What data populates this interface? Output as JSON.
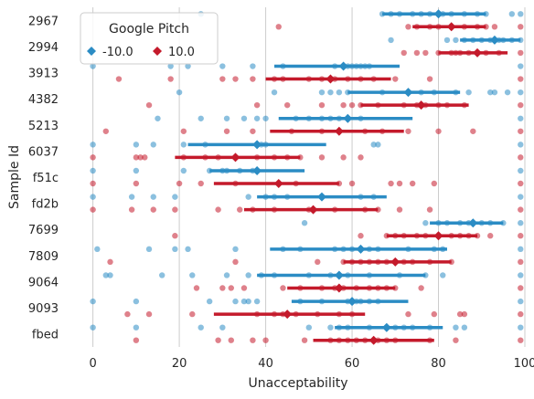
{
  "chart_data": {
    "type": "scatter",
    "xlabel": "Unacceptability",
    "ylabel": "Sample Id",
    "xlim": [
      -5,
      100
    ],
    "x_ticks": [
      0,
      20,
      40,
      60,
      80,
      100
    ],
    "grid": "vertical",
    "legend": {
      "title": "Google Pitch",
      "placement": "top-left"
    },
    "categories": [
      "2967",
      "2994",
      "3913",
      "4382",
      "5213",
      "6037",
      "f51c",
      "fd2b",
      "7699",
      "7809",
      "9064",
      "9093",
      "fbed"
    ],
    "series": [
      {
        "name": "-10.0",
        "color": "#2b8cc4",
        "means": [
          80,
          93,
          58,
          73,
          59,
          38,
          38,
          53,
          88,
          62,
          57,
          60,
          68
        ],
        "ci": [
          [
            67,
            91
          ],
          [
            85,
            99
          ],
          [
            42,
            71
          ],
          [
            59,
            85
          ],
          [
            43,
            74
          ],
          [
            22,
            54
          ],
          [
            27,
            49
          ],
          [
            38,
            68
          ],
          [
            78,
            95
          ],
          [
            41,
            82
          ],
          [
            38,
            77
          ],
          [
            46,
            73
          ],
          [
            56,
            81
          ]
        ],
        "points": [
          [
            25,
            67,
            69,
            71,
            74,
            76,
            78,
            81,
            83,
            86,
            89,
            91,
            97,
            99
          ],
          [
            69,
            82,
            84,
            86,
            88,
            90,
            92,
            94,
            95,
            97,
            99
          ],
          [
            0,
            18,
            22,
            30,
            37,
            44,
            56,
            58,
            59,
            60,
            61,
            62,
            63,
            64,
            99
          ],
          [
            20,
            42,
            53,
            55,
            57,
            59,
            67,
            73,
            76,
            79,
            84,
            87,
            92,
            93,
            96,
            99
          ],
          [
            15,
            25,
            31,
            35,
            38,
            40,
            47,
            50,
            53,
            55,
            57,
            62,
            99
          ],
          [
            0,
            10,
            14,
            21,
            26,
            38,
            39,
            40,
            65,
            66,
            99
          ],
          [
            0,
            10,
            21,
            27,
            30,
            31,
            34,
            37,
            99
          ],
          [
            0,
            9,
            14,
            19,
            36,
            40,
            42,
            45,
            62,
            65,
            99
          ],
          [
            49,
            77,
            80,
            82,
            85,
            87,
            90,
            92,
            95,
            99
          ],
          [
            1,
            13,
            19,
            22,
            33,
            44,
            48,
            56,
            58,
            60,
            62,
            64,
            66,
            73,
            79,
            81,
            99
          ],
          [
            3,
            4,
            16,
            23,
            31,
            36,
            39,
            42,
            50,
            55,
            59,
            64,
            71,
            77,
            81,
            99
          ],
          [
            0,
            10,
            27,
            33,
            35,
            36,
            38,
            48,
            53,
            59,
            61,
            62,
            64,
            66,
            99
          ],
          [
            0,
            10,
            25,
            30,
            50,
            55,
            57,
            59,
            64,
            68,
            70,
            72,
            74,
            78,
            84,
            86,
            99
          ]
        ]
      },
      {
        "name": "10.0",
        "color": "#c41a2b",
        "means": [
          83,
          89,
          55,
          76,
          57,
          33,
          43,
          51,
          80,
          70,
          57,
          45,
          65
        ],
        "ci": [
          [
            74,
            91
          ],
          [
            80,
            96
          ],
          [
            40,
            69
          ],
          [
            62,
            87
          ],
          [
            41,
            72
          ],
          [
            19,
            48
          ],
          [
            28,
            57
          ],
          [
            35,
            66
          ],
          [
            68,
            89
          ],
          [
            58,
            83
          ],
          [
            45,
            70
          ],
          [
            28,
            63
          ],
          [
            51,
            79
          ]
        ],
        "points": [
          [
            43,
            73,
            75,
            78,
            80,
            83,
            86,
            89,
            91,
            93,
            99
          ],
          [
            72,
            75,
            77,
            80,
            83,
            84,
            85,
            87,
            89,
            91,
            94,
            99
          ],
          [
            6,
            18,
            30,
            33,
            37,
            42,
            44,
            50,
            53,
            56,
            59,
            62,
            65,
            70,
            78,
            99
          ],
          [
            13,
            38,
            45,
            53,
            58,
            60,
            62,
            66,
            72,
            75,
            77,
            80,
            82,
            86,
            99
          ],
          [
            3,
            21,
            31,
            37,
            46,
            53,
            57,
            63,
            67,
            73,
            80,
            88,
            99
          ],
          [
            0,
            10,
            11,
            12,
            21,
            26,
            29,
            33,
            38,
            42,
            45,
            48,
            53,
            58,
            62,
            99
          ],
          [
            0,
            10,
            20,
            25,
            33,
            43,
            47,
            57,
            60,
            69,
            71,
            74,
            79,
            99
          ],
          [
            0,
            9,
            14,
            19,
            29,
            34,
            37,
            42,
            50,
            51,
            56,
            63,
            66,
            71,
            78,
            99
          ],
          [
            19,
            62,
            68,
            70,
            72,
            75,
            77,
            80,
            83,
            85,
            87,
            89,
            92,
            99
          ],
          [
            4,
            33,
            52,
            58,
            60,
            62,
            64,
            66,
            68,
            70,
            72,
            74,
            78,
            83,
            99
          ],
          [
            24,
            30,
            32,
            35,
            44,
            48,
            53,
            56,
            58,
            61,
            64,
            66,
            68,
            70,
            76,
            99
          ],
          [
            8,
            13,
            23,
            38,
            42,
            44,
            47,
            52,
            57,
            60,
            73,
            79,
            85,
            86,
            99
          ],
          [
            10,
            29,
            32,
            37,
            40,
            49,
            55,
            57,
            59,
            61,
            63,
            66,
            68,
            70,
            78,
            84,
            99
          ]
        ]
      }
    ]
  }
}
